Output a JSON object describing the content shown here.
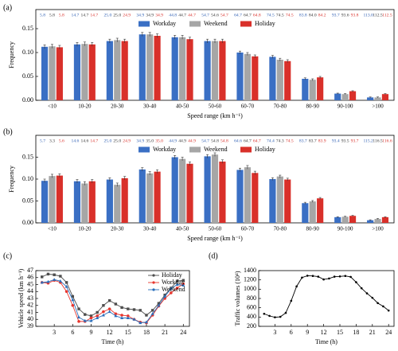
{
  "chart_data": [
    {
      "type": "bar",
      "label": "(a)",
      "xlabel": "Speed range (km h⁻¹)",
      "ylabel": "Frequency",
      "legend": "upper center",
      "categories": [
        "<10",
        "10-20",
        "20-30",
        "30-40",
        "40-50",
        "50-60",
        "60-70",
        "70-80",
        "80-90",
        "90-100",
        ">100"
      ],
      "ylim": [
        0,
        0.19
      ],
      "yticks": [
        {
          "value": 0,
          "label": "0.00"
        },
        {
          "value": 0.05,
          "label": "0.05"
        },
        {
          "value": 0.1,
          "label": "0.10"
        },
        {
          "value": 0.15,
          "label": "0.15"
        }
      ],
      "series": [
        {
          "name": "Workday",
          "color": "#3a6fc4",
          "text_color": "#2f5fb3",
          "values": [
            0.112,
            0.117,
            0.124,
            0.138,
            0.132,
            0.124,
            0.1,
            0.091,
            0.045,
            0.014,
            0.006
          ],
          "errors": [
            0.004,
            0.004,
            0.004,
            0.004,
            0.004,
            0.004,
            0.003,
            0.003,
            0.002,
            0.001,
            0.001
          ],
          "speed_labels": [
            "5.8",
            "14.7",
            "25.0",
            "34.9",
            "44.8",
            "54.7",
            "64.7",
            "74.5",
            "83.8",
            "93.7",
            "113.0"
          ]
        },
        {
          "name": "Weekend",
          "color": "#a6a6a6",
          "text_color": "#333333",
          "values": [
            0.113,
            0.118,
            0.126,
            0.138,
            0.132,
            0.124,
            0.097,
            0.085,
            0.043,
            0.013,
            0.006
          ],
          "errors": [
            0.004,
            0.004,
            0.004,
            0.004,
            0.004,
            0.004,
            0.003,
            0.003,
            0.002,
            0.001,
            0.001
          ],
          "speed_labels": [
            "5.8",
            "14.7",
            "25.0",
            "34.9",
            "44.7",
            "54.6",
            "64.7",
            "74.5",
            "84.0",
            "93.6",
            "112.5"
          ]
        },
        {
          "name": "Holiday",
          "color": "#d9302a",
          "text_color": "#d9302a",
          "values": [
            0.111,
            0.117,
            0.124,
            0.135,
            0.128,
            0.124,
            0.092,
            0.082,
            0.048,
            0.019,
            0.013
          ],
          "errors": [
            0.004,
            0.004,
            0.004,
            0.004,
            0.004,
            0.004,
            0.003,
            0.003,
            0.002,
            0.001,
            0.001
          ],
          "speed_labels": [
            "5.8",
            "14.7",
            "24.9",
            "34.9",
            "44.7",
            "54.7",
            "64.8",
            "74.5",
            "84.2",
            "93.8",
            "112.5"
          ]
        }
      ]
    },
    {
      "type": "bar",
      "label": "(b)",
      "xlabel": "Speed range (km h⁻¹)",
      "ylabel": "Frequency",
      "legend": "upper center",
      "categories": [
        "<10",
        "10-20",
        "20-30",
        "30-40",
        "40-50",
        "50-60",
        "60-70",
        "70-80",
        "80-90",
        "90-100",
        ">100"
      ],
      "ylim": [
        0,
        0.2
      ],
      "yticks": [
        {
          "value": 0,
          "label": "0.00"
        },
        {
          "value": 0.05,
          "label": "0.05"
        },
        {
          "value": 0.1,
          "label": "0.10"
        },
        {
          "value": 0.15,
          "label": "0.15"
        }
      ],
      "series": [
        {
          "name": "Workday",
          "color": "#3a6fc4",
          "text_color": "#2f5fb3",
          "values": [
            0.096,
            0.095,
            0.099,
            0.122,
            0.15,
            0.152,
            0.121,
            0.1,
            0.045,
            0.013,
            0.006
          ],
          "errors": [
            0.004,
            0.004,
            0.004,
            0.004,
            0.004,
            0.004,
            0.004,
            0.003,
            0.002,
            0.001,
            0.001
          ],
          "speed_labels": [
            "5.7",
            "14.6",
            "25.0",
            "34.9",
            "44.9",
            "54.7",
            "64.6",
            "74.4",
            "83.7",
            "93.4",
            "115.2"
          ]
        },
        {
          "name": "Weekend",
          "color": "#a6a6a6",
          "text_color": "#333333",
          "values": [
            0.107,
            0.09,
            0.087,
            0.113,
            0.146,
            0.156,
            0.127,
            0.106,
            0.049,
            0.014,
            0.009
          ],
          "errors": [
            0.004,
            0.004,
            0.004,
            0.004,
            0.004,
            0.004,
            0.004,
            0.003,
            0.002,
            0.001,
            0.001
          ],
          "speed_labels": [
            "3.3",
            "14.6",
            "25.0",
            "35.0",
            "44.9",
            "54.8",
            "64.7",
            "74.3",
            "83.7",
            "93.5",
            "116.5"
          ]
        },
        {
          "name": "Holiday",
          "color": "#d9302a",
          "text_color": "#d9302a",
          "values": [
            0.108,
            0.095,
            0.102,
            0.117,
            0.135,
            0.14,
            0.114,
            0.099,
            0.056,
            0.016,
            0.013
          ],
          "errors": [
            0.004,
            0.004,
            0.004,
            0.004,
            0.004,
            0.004,
            0.004,
            0.003,
            0.002,
            0.001,
            0.001
          ],
          "speed_labels": [
            "5.6",
            "14.7",
            "24.9",
            "35.0",
            "44.9",
            "54.8",
            "64.7",
            "74.5",
            "83.9",
            "93.7",
            "116.6"
          ]
        }
      ]
    },
    {
      "type": "line",
      "label": "(c)",
      "xlabel": "Time (h)",
      "ylabel": "Vehicle speed (km h⁻¹)",
      "legend": "upper right",
      "x": [
        1,
        2,
        3,
        4,
        5,
        6,
        7,
        8,
        9,
        10,
        11,
        12,
        13,
        14,
        15,
        16,
        17,
        18,
        19,
        20,
        21,
        22,
        23,
        24
      ],
      "xlim": [
        0,
        25
      ],
      "xticks": [
        3,
        6,
        9,
        12,
        15,
        18,
        21,
        24
      ],
      "ylim": [
        39,
        47
      ],
      "yticks": [
        39,
        40,
        41,
        42,
        43,
        44,
        45,
        46,
        47
      ],
      "series": [
        {
          "name": "Holiday",
          "color": "#4d4d4d",
          "marker": "square",
          "values": [
            46.1,
            46.5,
            46.4,
            46.2,
            45.3,
            43.3,
            41.5,
            40.7,
            40.5,
            41.0,
            42.0,
            42.7,
            42.2,
            41.7,
            41.5,
            41.4,
            41.3,
            40.6,
            41.3,
            42.3,
            43.5,
            44.5,
            45.5,
            45.6
          ]
        },
        {
          "name": "Workday",
          "color": "#e8352d",
          "marker": "circle",
          "values": [
            45.3,
            45.2,
            45.6,
            45.3,
            44.0,
            42.0,
            39.7,
            39.7,
            40.2,
            40.5,
            41.1,
            41.5,
            40.8,
            40.6,
            40.5,
            40.0,
            39.6,
            39.5,
            40.6,
            41.9,
            43.0,
            43.8,
            44.5,
            45.1
          ]
        },
        {
          "name": "Weekend",
          "color": "#2a6ebb",
          "marker": "triangle",
          "values": [
            45.3,
            45.4,
            45.7,
            45.5,
            44.7,
            42.8,
            40.3,
            39.8,
            39.8,
            40.2,
            40.6,
            41.1,
            40.5,
            40.2,
            40.2,
            40.0,
            39.5,
            39.6,
            40.8,
            42.0,
            43.3,
            44.4,
            45.0,
            44.9
          ]
        }
      ]
    },
    {
      "type": "line",
      "label": "(d)",
      "xlabel": "Time (h)",
      "ylabel": "Traffic volumes (10⁴)",
      "x": [
        1,
        2,
        3,
        4,
        5,
        6,
        7,
        8,
        9,
        10,
        11,
        12,
        13,
        14,
        15,
        16,
        17,
        18,
        19,
        20,
        21,
        22,
        23,
        24
      ],
      "xlim": [
        0,
        25
      ],
      "xticks": [
        3,
        6,
        9,
        12,
        15,
        18,
        21,
        24
      ],
      "ylim": [
        200,
        1400
      ],
      "yticks": [
        200,
        400,
        600,
        800,
        1000,
        1200,
        1400
      ],
      "series": [
        {
          "color": "#000000",
          "marker": "dot",
          "values": [
            470,
            425,
            395,
            405,
            490,
            750,
            1060,
            1250,
            1290,
            1285,
            1270,
            1210,
            1230,
            1270,
            1275,
            1285,
            1265,
            1150,
            1020,
            910,
            815,
            700,
            630,
            540
          ]
        }
      ]
    }
  ]
}
